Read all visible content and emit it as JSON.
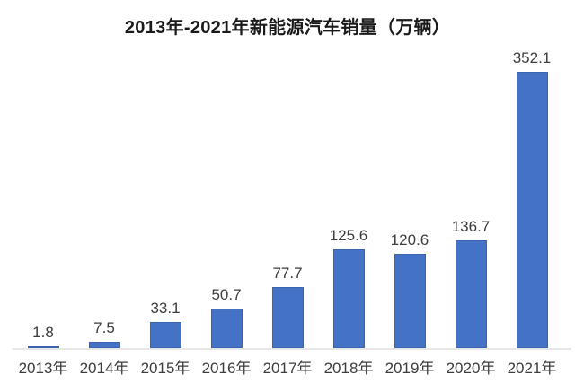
{
  "chart_data": {
    "type": "bar",
    "title": "2013年-2021年新能源汽车销量（万辆）",
    "categories": [
      "2013年",
      "2014年",
      "2015年",
      "2016年",
      "2017年",
      "2018年",
      "2019年",
      "2020年",
      "2021年"
    ],
    "values": [
      1.8,
      7.5,
      33.1,
      50.7,
      77.7,
      125.6,
      120.6,
      136.7,
      352.1
    ],
    "data_labels": [
      "1.8",
      "7.5",
      "33.1",
      "50.7",
      "77.7",
      "125.6",
      "120.6",
      "136.7",
      "352.1"
    ],
    "xlabel": "",
    "ylabel": "",
    "ylim": [
      0,
      400
    ],
    "grid": false,
    "legend": "none",
    "y_axis_visible": false
  },
  "colors": {
    "background": "#ffffff",
    "bar_fill": "#4472C4",
    "bar_border": "rgba(47,85,151,0.45)",
    "axis_line": "#E8E7E7",
    "title_text": "#1a1a1a",
    "label_text": "#3d3d3d"
  }
}
